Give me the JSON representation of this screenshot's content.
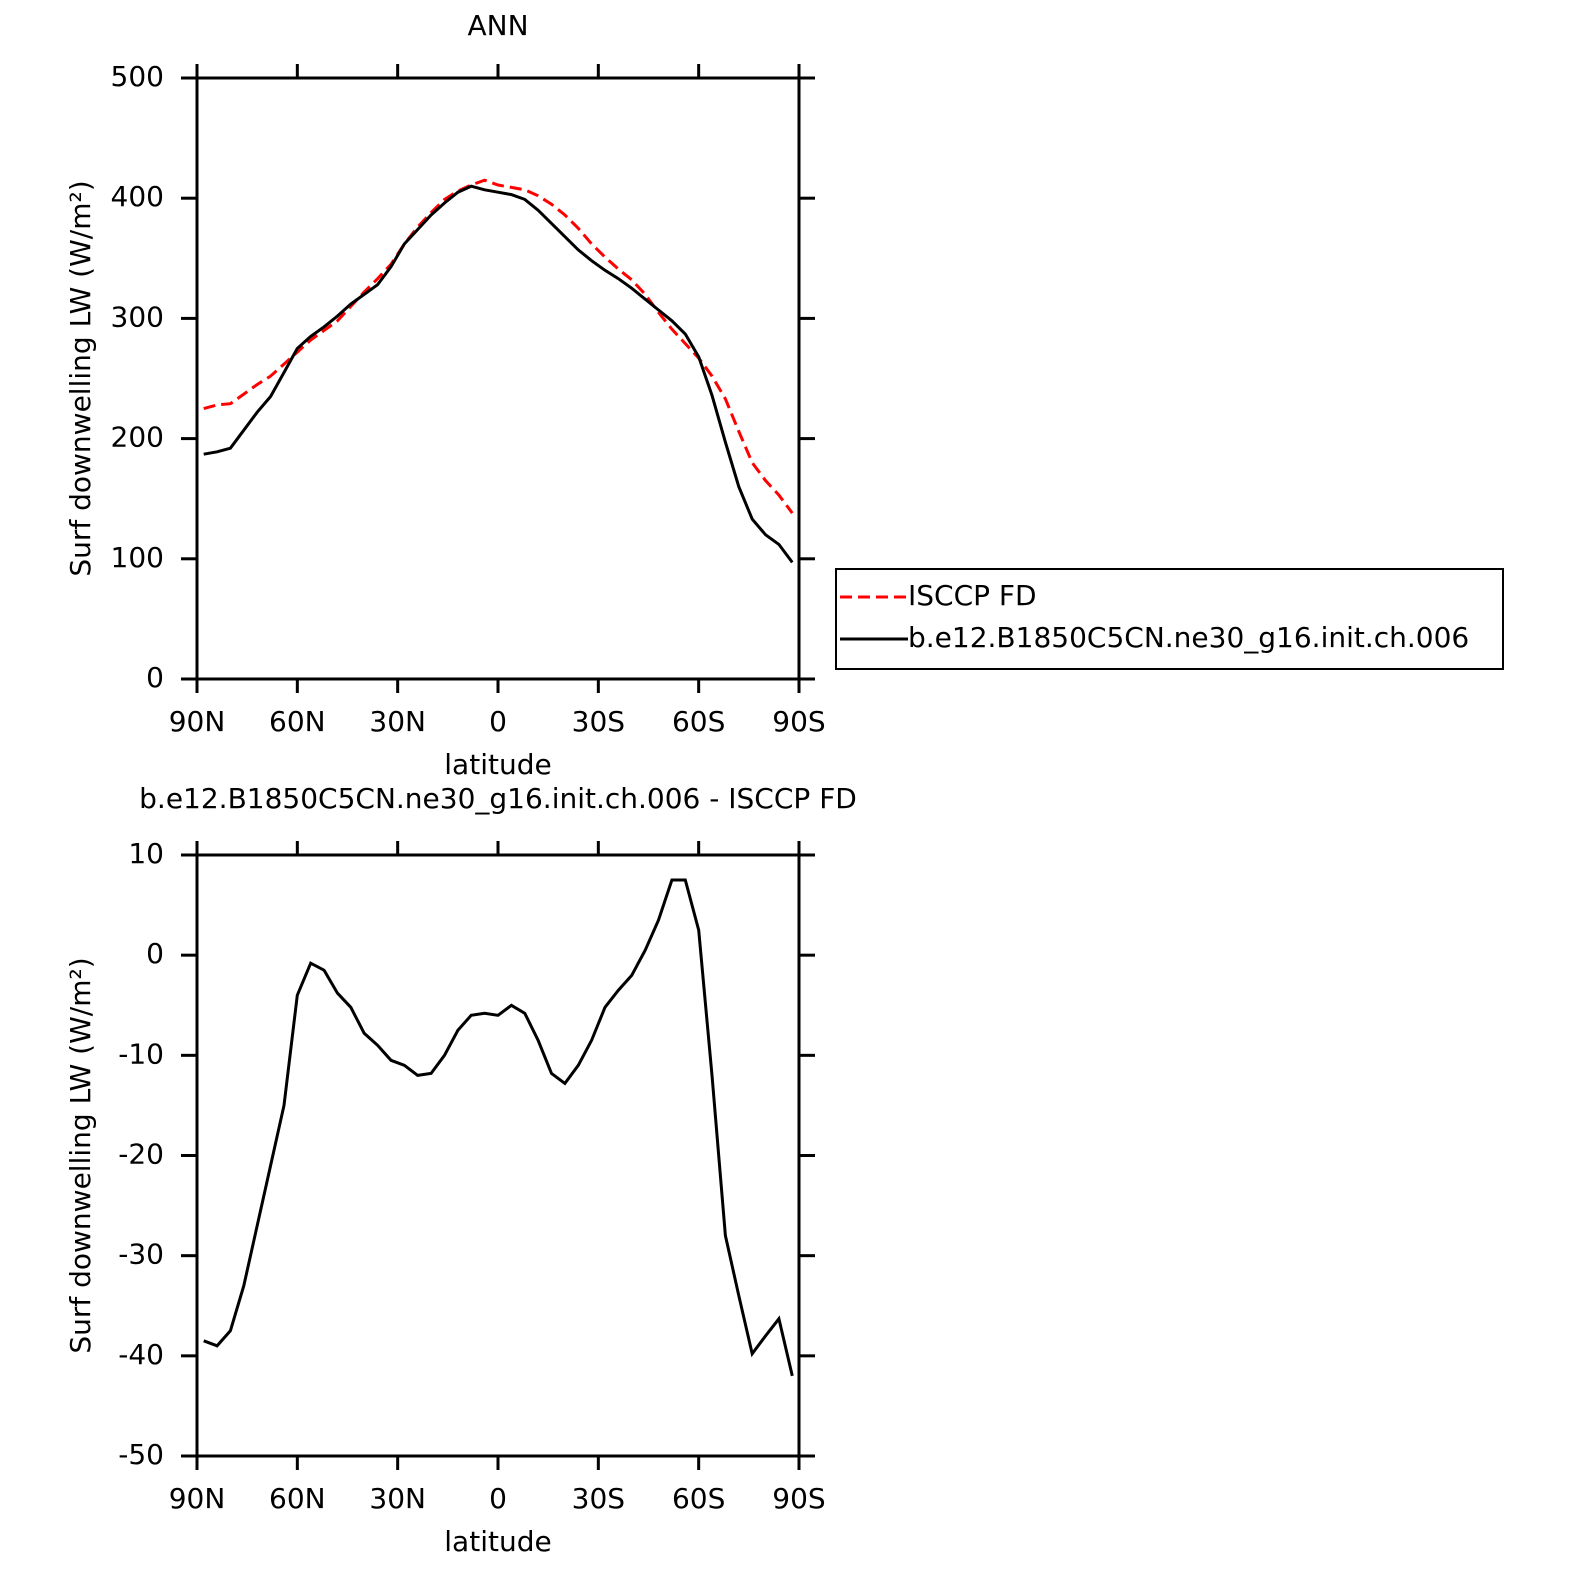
{
  "chart_data": [
    {
      "type": "line",
      "title": "ANN",
      "xlabel": "latitude",
      "ylabel": "Surf downwelling LW (W/m²)",
      "x": [
        88,
        84,
        80,
        76,
        72,
        68,
        64,
        60,
        56,
        52,
        48,
        44,
        40,
        36,
        32,
        28,
        24,
        20,
        16,
        12,
        8,
        4,
        0,
        -4,
        -8,
        -12,
        -16,
        -20,
        -24,
        -28,
        -32,
        -36,
        -40,
        -44,
        -48,
        -52,
        -56,
        -60,
        -64,
        -68,
        -72,
        -76,
        -80,
        -84,
        -88
      ],
      "xlim": [
        90,
        -90
      ],
      "xticks": [
        {
          "value": 90,
          "label": "90N"
        },
        {
          "value": 60,
          "label": "60N"
        },
        {
          "value": 30,
          "label": "30N"
        },
        0,
        {
          "value": -30,
          "label": "30S"
        },
        {
          "value": -60,
          "label": "60S"
        },
        {
          "value": -90,
          "label": "90S"
        }
      ],
      "ylim": [
        0,
        500
      ],
      "yticks": [
        0,
        100,
        200,
        300,
        400,
        500
      ],
      "legend": "right",
      "series": [
        {
          "name": "ISCCP FD",
          "color": "#ff0000",
          "dash": "dashed",
          "values": [
            225,
            228,
            229,
            237,
            245,
            252,
            262,
            272,
            282,
            290,
            298,
            310,
            322,
            333,
            345,
            362,
            376,
            388,
            399,
            406,
            411,
            415,
            411,
            409,
            407,
            402,
            395,
            386,
            375,
            362,
            351,
            341,
            332,
            320,
            305,
            291,
            279,
            267,
            252,
            233,
            206,
            180,
            165,
            153,
            138
          ]
        },
        {
          "name": "b.e12.B1850C5CN.ne30_g16.init.ch.006",
          "color": "#000000",
          "dash": "solid",
          "values": [
            187,
            189,
            192,
            207,
            222,
            235,
            255,
            275,
            285,
            293,
            302,
            312,
            320,
            328,
            343,
            362,
            374,
            386,
            396,
            405,
            410,
            407,
            405,
            403,
            399,
            390,
            379,
            368,
            357,
            348,
            340,
            333,
            325,
            316,
            307,
            298,
            287,
            268,
            236,
            197,
            160,
            133,
            120,
            112,
            97
          ]
        }
      ]
    },
    {
      "type": "line",
      "title": "b.e12.B1850C5CN.ne30_g16.init.ch.006 - ISCCP FD",
      "xlabel": "latitude",
      "ylabel": "Surf downwelling LW (W/m²)",
      "x": [
        88,
        84,
        80,
        76,
        72,
        68,
        64,
        60,
        56,
        52,
        48,
        44,
        40,
        36,
        32,
        28,
        24,
        20,
        16,
        12,
        8,
        4,
        0,
        -4,
        -8,
        -12,
        -16,
        -20,
        -24,
        -28,
        -32,
        -36,
        -40,
        -44,
        -48,
        -52,
        -56,
        -60,
        -64,
        -68,
        -72,
        -76,
        -80,
        -84,
        -88
      ],
      "xlim": [
        90,
        -90
      ],
      "xticks": [
        {
          "value": 90,
          "label": "90N"
        },
        {
          "value": 60,
          "label": "60N"
        },
        {
          "value": 30,
          "label": "30N"
        },
        0,
        {
          "value": -30,
          "label": "30S"
        },
        {
          "value": -60,
          "label": "60S"
        },
        {
          "value": -90,
          "label": "90S"
        }
      ],
      "ylim": [
        -50,
        10
      ],
      "yticks": [
        -50,
        -40,
        -30,
        -20,
        -10,
        0,
        10
      ],
      "color": "#000000",
      "values": [
        -38.5,
        -39,
        -37.5,
        -33,
        -27,
        -21,
        -15,
        -4,
        -0.8,
        -1.5,
        -3.8,
        -5.2,
        -7.8,
        -9,
        -10.5,
        -11,
        -12,
        -11.8,
        -10,
        -7.5,
        -6,
        -5.8,
        -6,
        -5,
        -5.8,
        -8.5,
        -11.8,
        -12.8,
        -11,
        -8.5,
        -5.2,
        -3.5,
        -2,
        0.5,
        3.5,
        7.5,
        7.5,
        2.5,
        -12,
        -28,
        -34,
        -39.8,
        -38,
        -36.3,
        -42
      ]
    }
  ]
}
